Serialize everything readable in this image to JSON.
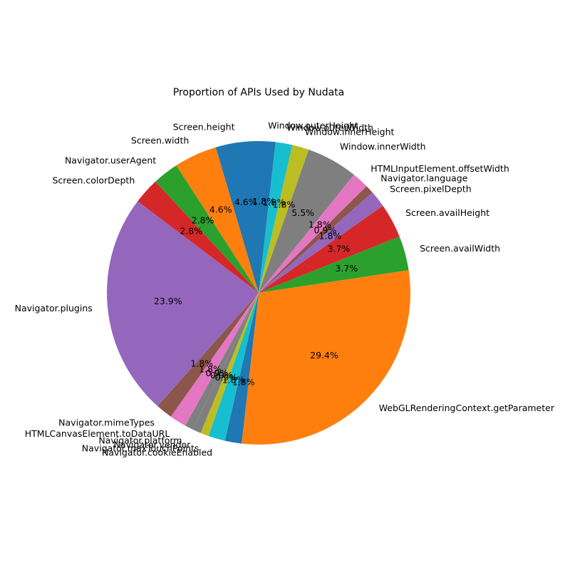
{
  "chart_data": {
    "type": "pie",
    "title": "Proportion of APIs Used by Nudata",
    "start_angle_deg": 90,
    "direction": "clockwise",
    "slices": [
      {
        "label": "Window.outerHeight",
        "percent": 1.8,
        "color": "#1f77b4"
      },
      {
        "label": "Window.outerWidth",
        "percent": 1.8,
        "color": "#17becf"
      },
      {
        "label": "Window.innerHeight",
        "percent": 1.8,
        "color": "#bcbd22"
      },
      {
        "label": "Window.innerWidth",
        "percent": 5.5,
        "color": "#7f7f7f"
      },
      {
        "label": "HTMLInputElement.offsetWidth",
        "percent": 1.8,
        "color": "#e377c2"
      },
      {
        "label": "Navigator.language",
        "percent": 0.9,
        "color": "#8c564b"
      },
      {
        "label": "Screen.pixelDepth",
        "percent": 1.8,
        "color": "#9467bd"
      },
      {
        "label": "Screen.availHeight",
        "percent": 3.7,
        "color": "#d62728"
      },
      {
        "label": "Screen.availWidth",
        "percent": 3.7,
        "color": "#2ca02c"
      },
      {
        "label": "WebGLRenderingContext.getParameter",
        "percent": 29.4,
        "color": "#ff7f0e"
      },
      {
        "label": "",
        "percent": 1.8,
        "color": "#1f77b4"
      },
      {
        "label": "Navigator.cookieEnabled",
        "percent": 1.8,
        "color": "#17becf"
      },
      {
        "label": "Navigator.maxTouchPoints",
        "percent": 0.9,
        "color": "#bcbd22"
      },
      {
        "label": "Navigator.vendor",
        "percent": 0.9,
        "color": "#7f7f7f"
      },
      {
        "label": "Navigator.platform",
        "percent": 0.9,
        "color": "#7f7f7f"
      },
      {
        "label": "HTMLCanvasElement.toDataURL",
        "percent": 1.8,
        "color": "#e377c2"
      },
      {
        "label": "Navigator.mimeTypes",
        "percent": 1.8,
        "color": "#8c564b"
      },
      {
        "label": "Navigator.plugins",
        "percent": 23.9,
        "color": "#9467bd"
      },
      {
        "label": "Screen.colorDepth",
        "percent": 2.8,
        "color": "#d62728"
      },
      {
        "label": "Navigator.userAgent",
        "percent": 2.8,
        "color": "#2ca02c"
      },
      {
        "label": "Screen.width",
        "percent": 4.6,
        "color": "#ff7f0e"
      },
      {
        "label": "Screen.height",
        "percent": 4.6,
        "color": "#1f77b4"
      }
    ]
  }
}
